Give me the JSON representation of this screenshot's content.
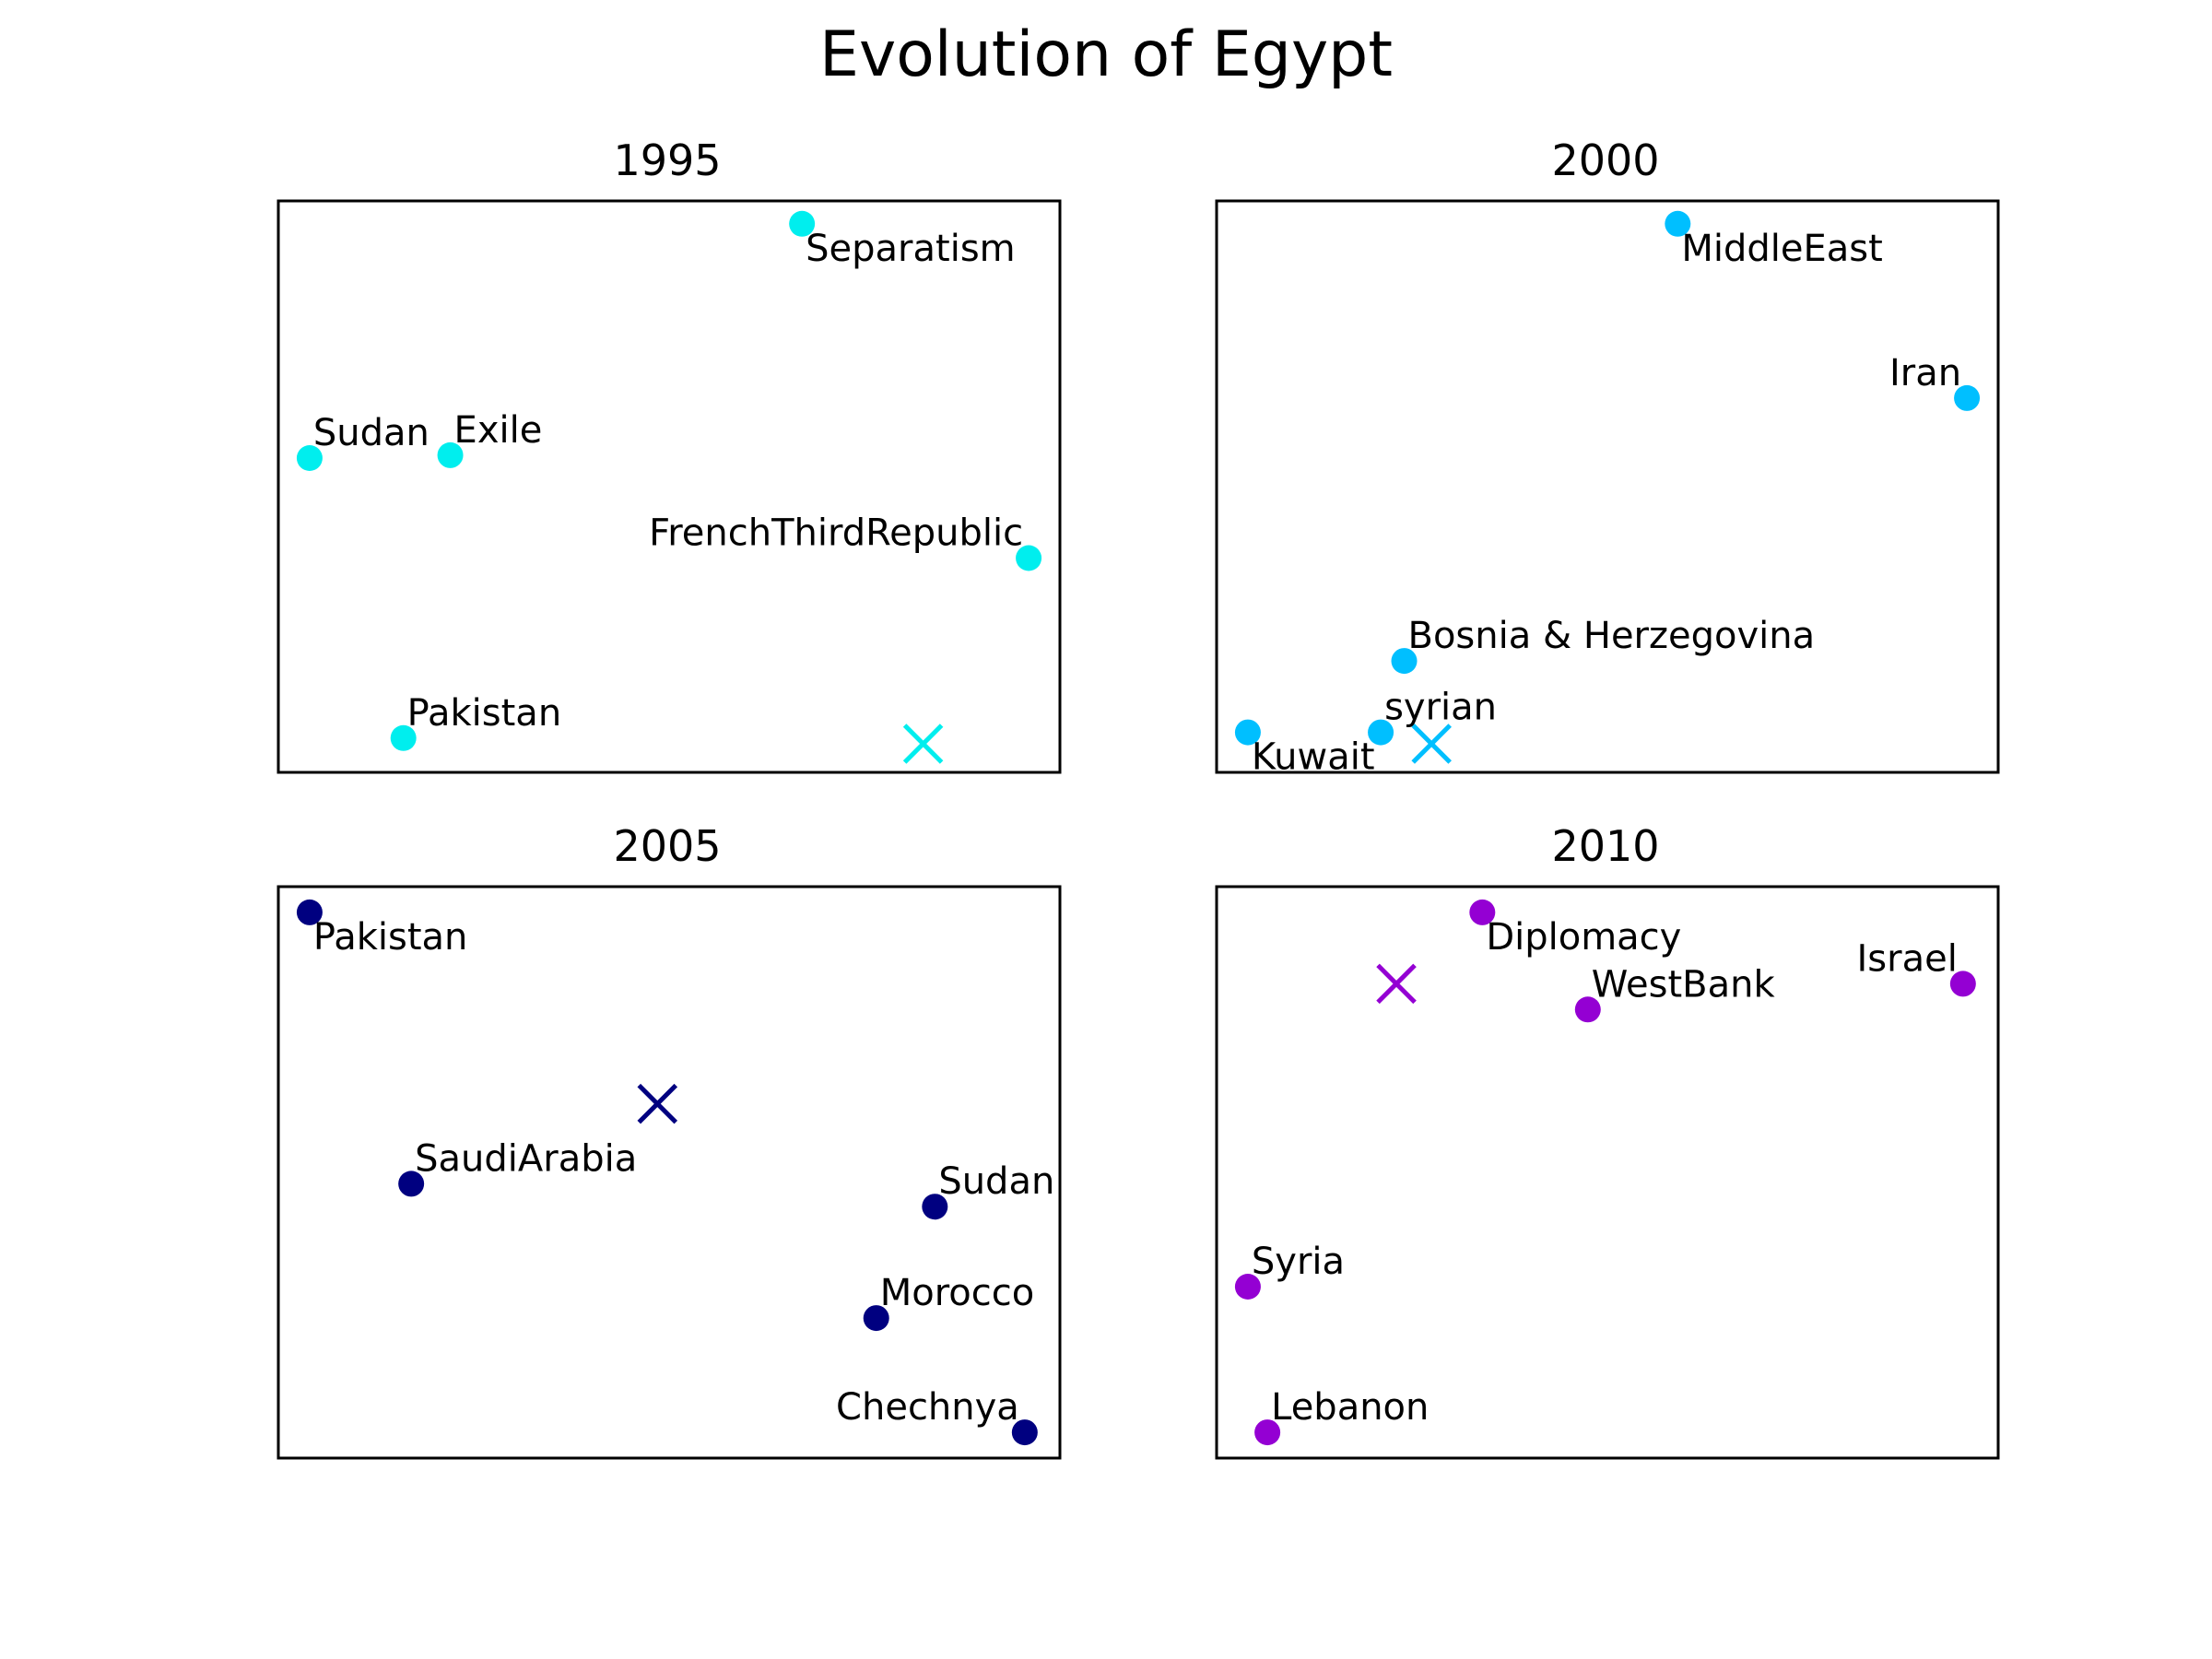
{
  "figure": {
    "title": "Evolution of Egypt"
  },
  "chart_data": [
    {
      "type": "scatter",
      "title": "1995",
      "color": "#00eeee",
      "xlim": [
        0,
        1
      ],
      "ylim": [
        0,
        1
      ],
      "axes_ticks": false,
      "grid": false,
      "points": [
        {
          "label": "Separatism",
          "x": 0.67,
          "y": 0.96,
          "label_pos": "below-right"
        },
        {
          "label": "Sudan",
          "x": 0.04,
          "y": 0.55,
          "label_pos": "above-right"
        },
        {
          "label": "Exile",
          "x": 0.22,
          "y": 0.555,
          "label_pos": "above-right"
        },
        {
          "label": "FrenchThirdRepublic",
          "x": 0.96,
          "y": 0.375,
          "label_pos": "above-left"
        },
        {
          "label": "Pakistan",
          "x": 0.16,
          "y": 0.06,
          "label_pos": "above-right"
        }
      ],
      "centroid": {
        "x": 0.825,
        "y": 0.05
      }
    },
    {
      "type": "scatter",
      "title": "2000",
      "color": "#00bfff",
      "xlim": [
        0,
        1
      ],
      "ylim": [
        0,
        1
      ],
      "axes_ticks": false,
      "grid": false,
      "points": [
        {
          "label": "MiddleEast",
          "x": 0.59,
          "y": 0.96,
          "label_pos": "below-right"
        },
        {
          "label": "Iran",
          "x": 0.96,
          "y": 0.655,
          "label_pos": "above-left"
        },
        {
          "label": "Bosnia & Herzegovina",
          "x": 0.24,
          "y": 0.195,
          "label_pos": "above-right"
        },
        {
          "label": "syrian",
          "x": 0.21,
          "y": 0.07,
          "label_pos": "above-right"
        },
        {
          "label": "Kuwait",
          "x": 0.04,
          "y": 0.07,
          "label_pos": "below-right"
        }
      ],
      "centroid": {
        "x": 0.275,
        "y": 0.05
      }
    },
    {
      "type": "scatter",
      "title": "2005",
      "color": "#000080",
      "xlim": [
        0,
        1
      ],
      "ylim": [
        0,
        1
      ],
      "axes_ticks": false,
      "grid": false,
      "points": [
        {
          "label": "Pakistan",
          "x": 0.04,
          "y": 0.955,
          "label_pos": "below-right"
        },
        {
          "label": "SaudiArabia",
          "x": 0.17,
          "y": 0.48,
          "label_pos": "above-right"
        },
        {
          "label": "Sudan",
          "x": 0.84,
          "y": 0.44,
          "label_pos": "above-right"
        },
        {
          "label": "Morocco",
          "x": 0.765,
          "y": 0.245,
          "label_pos": "above-right"
        },
        {
          "label": "Chechnya",
          "x": 0.955,
          "y": 0.045,
          "label_pos": "above-left"
        }
      ],
      "centroid": {
        "x": 0.485,
        "y": 0.62
      }
    },
    {
      "type": "scatter",
      "title": "2010",
      "color": "#9400d3",
      "xlim": [
        0,
        1
      ],
      "ylim": [
        0,
        1
      ],
      "axes_ticks": false,
      "grid": false,
      "points": [
        {
          "label": "Diplomacy",
          "x": 0.34,
          "y": 0.955,
          "label_pos": "below-right"
        },
        {
          "label": "Israel",
          "x": 0.955,
          "y": 0.83,
          "label_pos": "above-left"
        },
        {
          "label": "WestBank",
          "x": 0.475,
          "y": 0.785,
          "label_pos": "above-right"
        },
        {
          "label": "Syria",
          "x": 0.04,
          "y": 0.3,
          "label_pos": "above-right"
        },
        {
          "label": "Lebanon",
          "x": 0.065,
          "y": 0.045,
          "label_pos": "above-right"
        }
      ],
      "centroid": {
        "x": 0.23,
        "y": 0.83
      }
    }
  ]
}
